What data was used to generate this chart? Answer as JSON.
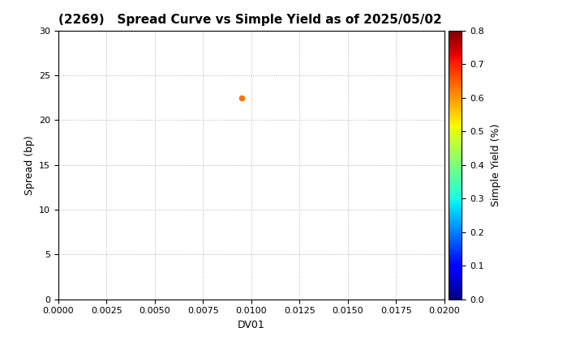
{
  "title": "(2269)   Spread Curve vs Simple Yield as of 2025/05/02",
  "xlabel": "DV01",
  "ylabel": "Spread (bp)",
  "colorbar_label": "Simple Yield (%)",
  "xlim": [
    0.0,
    0.02
  ],
  "ylim": [
    0,
    30
  ],
  "xticks": [
    0.0,
    0.0025,
    0.005,
    0.0075,
    0.01,
    0.0125,
    0.015,
    0.0175,
    0.02
  ],
  "yticks": [
    0,
    5,
    10,
    15,
    20,
    25,
    30
  ],
  "clim": [
    0.0,
    0.8
  ],
  "cticks": [
    0.0,
    0.1,
    0.2,
    0.3,
    0.4,
    0.5,
    0.6,
    0.7,
    0.8
  ],
  "scatter_x": [
    0.0095
  ],
  "scatter_y": [
    22.5
  ],
  "scatter_c": [
    0.63
  ],
  "scatter_size": 20,
  "grid_color": "#b0b0b0",
  "bg_color": "#ffffff",
  "title_fontsize": 11,
  "axis_fontsize": 9,
  "tick_fontsize": 8,
  "colorbar_label_fontsize": 9
}
